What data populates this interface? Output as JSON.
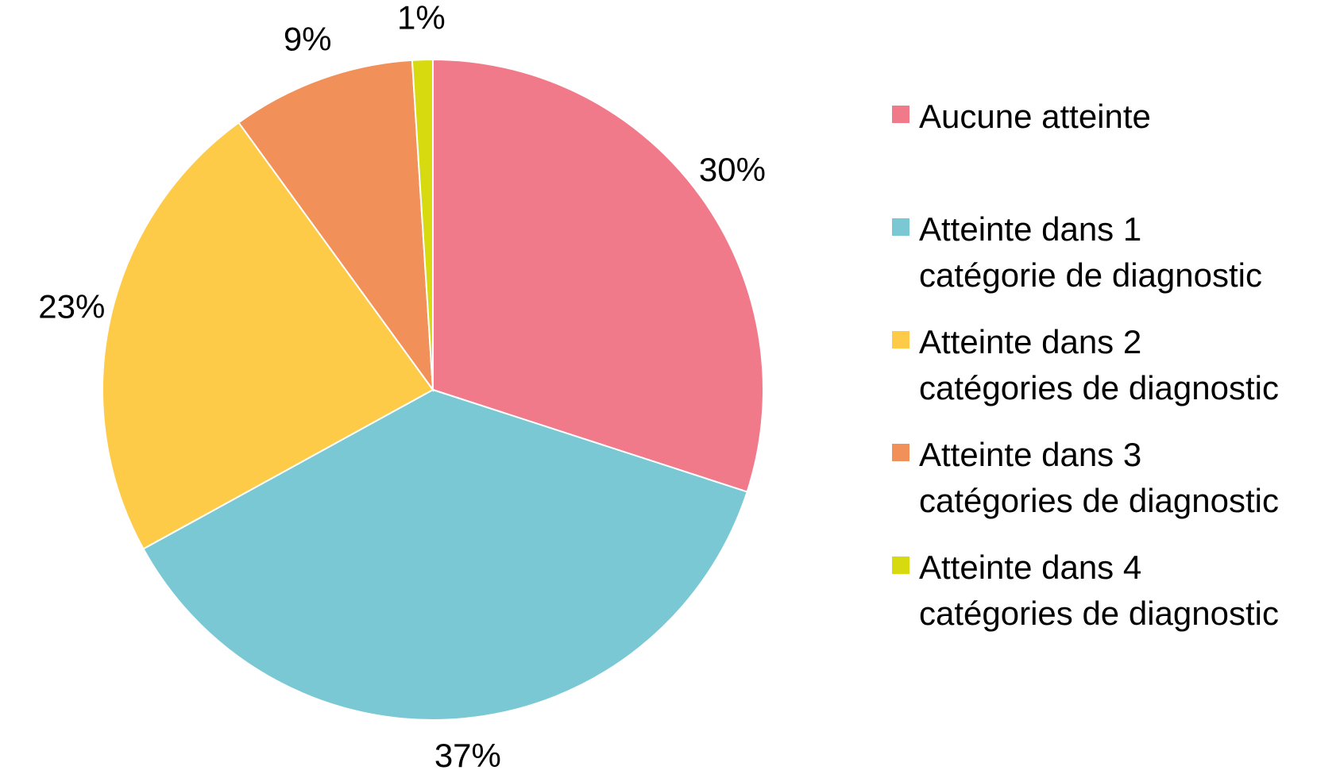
{
  "chart_data": {
    "type": "pie",
    "categories": [
      "Aucune atteinte",
      "Atteinte dans 1\ncatégorie de diagnostic",
      "Atteinte dans 2\ncatégories de diagnostic",
      "Atteinte dans 3\ncatégories de diagnostic",
      "Atteinte dans 4\ncatégories de diagnostic"
    ],
    "values": [
      30,
      37,
      23,
      9,
      1
    ],
    "value_labels": [
      "30%",
      "37%",
      "23%",
      "9%",
      "1%"
    ],
    "colors": [
      "#f07a8a",
      "#7ac8d3",
      "#fdcb48",
      "#f2905a",
      "#d6da0e"
    ],
    "legend": "right"
  }
}
